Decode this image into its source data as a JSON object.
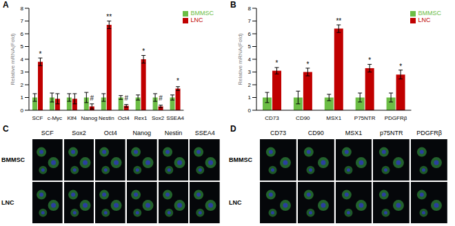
{
  "chart_data": [
    {
      "type": "bar",
      "title": "A",
      "y_label": "Relative mRNA(Fold)",
      "categories": [
        "SCF",
        "c-Myc",
        "Klf4",
        "Nanog",
        "Nestin",
        "Oct4",
        "Rex1",
        "Sox2",
        "SSEA4"
      ],
      "series": [
        {
          "name": "BMMSC",
          "color": "#6cbd45",
          "values": [
            1,
            1,
            1,
            1,
            1,
            1,
            1,
            1,
            1
          ],
          "errors": [
            0.3,
            0.35,
            0.3,
            0.4,
            0.3,
            0.15,
            0.2,
            0.3,
            0.2
          ]
        },
        {
          "name": "LNC",
          "color": "#c00000",
          "values": [
            3.8,
            0.9,
            0.9,
            0.3,
            6.7,
            0.35,
            4.0,
            0.3,
            1.7
          ],
          "errors": [
            0.3,
            0.4,
            0.4,
            0.2,
            0.3,
            0.1,
            0.3,
            0.1,
            0.15
          ],
          "annotations": [
            "*",
            null,
            null,
            "#",
            "**",
            "#",
            "*",
            "#",
            "*"
          ]
        }
      ],
      "ylim": [
        0,
        8
      ],
      "yticks": [
        0,
        1,
        2,
        3,
        4,
        5,
        6,
        7,
        8
      ],
      "legend": "upper right"
    },
    {
      "type": "bar",
      "title": "B",
      "y_label": "Relative mRNA(Fold)",
      "categories": [
        "CD73",
        "CD90",
        "MSX1",
        "P75NTR",
        "PDGFRβ"
      ],
      "series": [
        {
          "name": "BMMSC",
          "color": "#6cbd45",
          "values": [
            1,
            1,
            1,
            1,
            1
          ],
          "errors": [
            0.4,
            0.5,
            0.25,
            0.35,
            0.35
          ]
        },
        {
          "name": "LNC",
          "color": "#c00000",
          "values": [
            3.1,
            3.0,
            6.4,
            3.3,
            2.8
          ],
          "errors": [
            0.25,
            0.3,
            0.3,
            0.3,
            0.35
          ],
          "annotations": [
            "*",
            "*",
            "**",
            "*",
            "*"
          ]
        }
      ],
      "ylim": [
        0,
        8
      ],
      "yticks": [
        0,
        1,
        2,
        3,
        4,
        5,
        6,
        7,
        8
      ],
      "legend": "upper right"
    }
  ],
  "image_panels": [
    {
      "title": "C",
      "rows": [
        "BMMSC",
        "LNC"
      ],
      "columns": [
        "SCF",
        "Sox2",
        "Oct4",
        "Nanog",
        "Nestin",
        "SSEA4"
      ]
    },
    {
      "title": "D",
      "rows": [
        "BMMSC",
        "LNC"
      ],
      "columns": [
        "CD73",
        "CD90",
        "MSX1",
        "p75NTR",
        "PDGFRβ"
      ]
    }
  ]
}
